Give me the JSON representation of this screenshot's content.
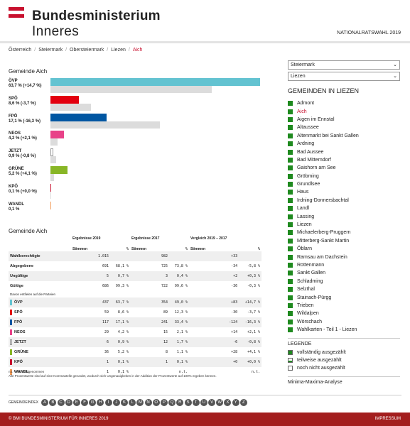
{
  "header": {
    "logo_line1": "Bundesministerium",
    "logo_line2": "Inneres",
    "election": "NATIONALRATSWAHL 2019",
    "flag_colors": [
      "#c8102e",
      "#ffffff",
      "#c8102e"
    ]
  },
  "breadcrumb": [
    "Österreich",
    "Steiermark",
    "Obersteiermark",
    "Liezen",
    "Aich"
  ],
  "chart_title": "Gemeinde Aich",
  "chart_data": {
    "type": "bar",
    "categories": [
      "ÖVP",
      "SPÖ",
      "FPÖ",
      "NEOS",
      "JETZT",
      "GRÜNE",
      "KPÖ",
      "WANDL"
    ],
    "series": [
      {
        "values": [
          63.7,
          8.6,
          17.1,
          4.2,
          0.9,
          5.2,
          0.1,
          0.1
        ]
      },
      {
        "values": [
          49.0,
          12.3,
          33.4,
          2.1,
          1.7,
          1.1,
          0.1,
          0
        ]
      }
    ],
    "labels": [
      {
        "name": "ÖVP",
        "text": "63,7 % (+14,7 %)"
      },
      {
        "name": "SPÖ",
        "text": "8,6 % (-3,7 %)"
      },
      {
        "name": "FPÖ",
        "text": "17,1 % (-16,3 %)"
      },
      {
        "name": "NEOS",
        "text": "4,2 % (+2,1 %)"
      },
      {
        "name": "JETZT",
        "text": "0,9 % (-0,8 %)"
      },
      {
        "name": "GRÜNE",
        "text": "5,2 % (+4,1 %)"
      },
      {
        "name": "KPÖ",
        "text": "0,1 % (+0,0 %)"
      },
      {
        "name": "WANDL",
        "text": "0,1 %"
      }
    ],
    "colors": [
      "#63c3d1",
      "#e3000f",
      "#0056a2",
      "#e84188",
      "#ffffff",
      "#88b626",
      "#c8102e",
      "#f39c5a"
    ],
    "ylim": [
      0,
      64
    ]
  },
  "table_title": "Gemeinde Aich",
  "table": {
    "head": {
      "e2019": "Ergebnisse 2019",
      "e2017": "Ergebnisse 2017",
      "cmp": "Vergleich 2019 – 2017",
      "stimmen": "Stimmen",
      "pct": "%"
    },
    "rows": [
      {
        "label": "Wahlberechtigte",
        "s19": "1.015",
        "p19": "",
        "s17": "982",
        "p17": "",
        "d": "+33",
        "dp": ""
      },
      {
        "label": "Abgegebene",
        "s19": "691",
        "p19": "68,1 %",
        "s17": "725",
        "p17": "73,8 %",
        "d": "-34",
        "dp": "-5,8 %"
      },
      {
        "label": "Ungültige",
        "s19": "5",
        "p19": "0,7 %",
        "s17": "3",
        "p17": "0,4 %",
        "d": "+2",
        "dp": "+0,3 %"
      },
      {
        "label": "Gültige",
        "s19": "686",
        "p19": "99,3 %",
        "s17": "722",
        "p17": "99,6 %",
        "d": "-36",
        "dp": "-0,3 %"
      }
    ],
    "sub_note": "Davon entfielen auf die Parteien",
    "parties": [
      {
        "label": "ÖVP",
        "color": "#63c3d1",
        "s19": "437",
        "p19": "63,7 %",
        "s17": "354",
        "p17": "49,0 %",
        "d": "+83",
        "dp": "+14,7 %"
      },
      {
        "label": "SPÖ",
        "color": "#e3000f",
        "s19": "59",
        "p19": "8,6 %",
        "s17": "89",
        "p17": "12,3 %",
        "d": "-30",
        "dp": "-3,7 %"
      },
      {
        "label": "FPÖ",
        "color": "#0056a2",
        "s19": "117",
        "p19": "17,1 %",
        "s17": "241",
        "p17": "33,4 %",
        "d": "-124",
        "dp": "-16,3 %"
      },
      {
        "label": "NEOS",
        "color": "#e84188",
        "s19": "29",
        "p19": "4,2 %",
        "s17": "15",
        "p17": "2,1 %",
        "d": "+14",
        "dp": "+2,1 %"
      },
      {
        "label": "JETZT",
        "color": "#ffffff",
        "s19": "6",
        "p19": "0,9 %",
        "s17": "12",
        "p17": "1,7 %",
        "d": "-6",
        "dp": "-0,8 %"
      },
      {
        "label": "GRÜNE",
        "color": "#88b626",
        "s19": "36",
        "p19": "5,2 %",
        "s17": "8",
        "p17": "1,1 %",
        "d": "+28",
        "dp": "+4,1 %"
      },
      {
        "label": "KPÖ",
        "color": "#c8102e",
        "s19": "1",
        "p19": "0,1 %",
        "s17": "1",
        "p17": "0,1 %",
        "d": "+0",
        "dp": "+0,0 %"
      },
      {
        "label": "WANDL",
        "color": "#f39c5a",
        "s19": "1",
        "p19": "0,1 %",
        "s17": "",
        "p17": "n.t.",
        "d": "",
        "dp": "n.t."
      }
    ]
  },
  "notes": {
    "line1": "n.t. – nicht teilgenommen",
    "line2": "Alle Prozentwerte sind auf eine Kommastelle gerundet, wodurch sich Ungenauigkeiten in der Addition der Prozentwerte auf 100% ergeben können."
  },
  "index": {
    "label": "GEMEINDEINDEX",
    "letters": [
      "A",
      "B",
      "C",
      "D",
      "E",
      "F",
      "G",
      "H",
      "I",
      "J",
      "K",
      "L",
      "M",
      "N",
      "O",
      "P",
      "Q",
      "R",
      "S",
      "T",
      "U",
      "V",
      "W",
      "X",
      "Y",
      "Z"
    ]
  },
  "sidebar": {
    "state_select": "Steiermark",
    "district_select": "Liezen",
    "title": "GEMEINDEN IN LIEZEN",
    "items": [
      "Admont",
      "Aich",
      "Aigen im Ennstal",
      "Altaussee",
      "Altenmarkt bei Sankt Gallen",
      "Ardning",
      "Bad Aussee",
      "Bad Mitterndorf",
      "Gaishorn am See",
      "Gröbming",
      "Grundlsee",
      "Haus",
      "Irdning-Donnersbachtal",
      "Landl",
      "Lassing",
      "Liezen",
      "Michaelerberg-Pruggern",
      "Mitterberg-Sankt Martin",
      "Öblarn",
      "Ramsau am Dachstein",
      "Rottenmann",
      "Sankt Gallen",
      "Schladming",
      "Selzthal",
      "Stainach-Pürgg",
      "Trieben",
      "Wildalpen",
      "Wörschach",
      "Wahlkarten - Teil 1 - Liezen"
    ],
    "selected": "Aich",
    "legend_title": "LEGENDE",
    "legend": [
      {
        "label": "vollständig ausgezählt",
        "color": "#1f8a1f"
      },
      {
        "label": "teilweise ausgezählt",
        "color": "#ffffff"
      },
      {
        "label": "noch nicht ausgezählt",
        "color": "#ffffff"
      }
    ],
    "minmax": "Minima-Maxima-Analyse"
  },
  "footer": {
    "copyright": "© BMI BUNDESMINISTERIUM FÜR INNERES 2019",
    "impressum": "IMPRESSUM"
  }
}
